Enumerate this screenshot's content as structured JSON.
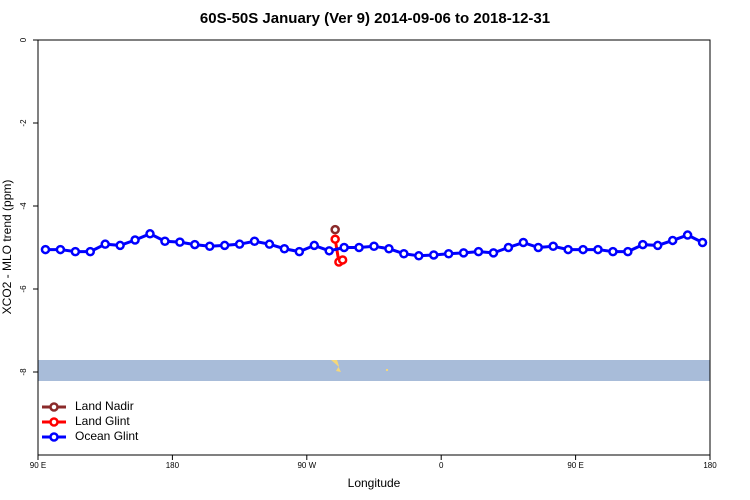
{
  "chart_data": {
    "type": "line",
    "title": "60S-50S January (Ver 9)   2014-09-06 to 2018-12-31",
    "xlabel": "Longitude",
    "ylabel": "XCO2 - MLO trend (ppm)",
    "xlim": [
      90,
      540
    ],
    "ylim": [
      -10,
      0
    ],
    "xticks": [
      {
        "value": 90,
        "label": "90 E"
      },
      180,
      {
        "value": 270,
        "label": "90 W"
      },
      {
        "value": 360,
        "label": "0"
      },
      {
        "value": 450,
        "label": "90 E"
      },
      {
        "value": 540,
        "label": "180"
      }
    ],
    "yticks": [
      0,
      -2,
      -4,
      -6,
      -8
    ],
    "legend": "bottomleft",
    "series": [
      {
        "name": "Land Nadir",
        "color": "#8b2a2a",
        "x": [
          289
        ],
        "values": [
          -4.57
        ]
      },
      {
        "name": "Land Glint",
        "color": "#ff0000",
        "x": [
          289,
          291.5,
          294
        ],
        "values": [
          -4.8,
          -5.35,
          -5.3
        ]
      },
      {
        "name": "Ocean Glint",
        "color": "#0000ff",
        "x": [
          95,
          105,
          115,
          125,
          135,
          145,
          155,
          165,
          175,
          185,
          195,
          205,
          215,
          225,
          235,
          245,
          255,
          265,
          275,
          285,
          295,
          305,
          315,
          325,
          335,
          345,
          355,
          365,
          375,
          385,
          395,
          405,
          415,
          425,
          435,
          445,
          455,
          465,
          475,
          485,
          495,
          505,
          515,
          525,
          535
        ],
        "values": [
          -5.05,
          -5.05,
          -5.1,
          -5.1,
          -4.92,
          -4.95,
          -4.82,
          -4.67,
          -4.85,
          -4.87,
          -4.93,
          -4.97,
          -4.95,
          -4.92,
          -4.85,
          -4.92,
          -5.03,
          -5.1,
          -4.95,
          -5.08,
          -5.0,
          -5.0,
          -4.97,
          -5.03,
          -5.15,
          -5.2,
          -5.18,
          -5.15,
          -5.13,
          -5.1,
          -5.13,
          -5.0,
          -4.88,
          -5.0,
          -4.97,
          -5.05,
          -5.05,
          -5.05,
          -5.1,
          -5.1,
          -4.93,
          -4.95,
          -4.83,
          -4.7,
          -4.88
        ]
      }
    ]
  }
}
